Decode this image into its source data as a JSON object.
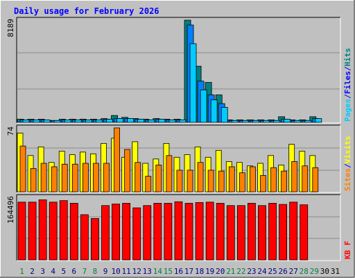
{
  "chart_data": [
    {
      "type": "bar",
      "panel": "hits-files-pages",
      "title": "Daily usage for February 2026",
      "ylabel_max": "8189",
      "side_legend": [
        {
          "text": "Pages",
          "color": "#00ccff"
        },
        {
          "text": "/",
          "color": "#0000ff"
        },
        {
          "text": "Files",
          "color": "#0000ff"
        },
        {
          "text": "/",
          "color": "#0000ff"
        },
        {
          "text": "Hits",
          "color": "#008080"
        }
      ],
      "ymax": 8189,
      "series": [
        {
          "name": "Hits",
          "color": "#008080",
          "values": [
            250,
            250,
            250,
            150,
            250,
            250,
            250,
            250,
            300,
            550,
            400,
            300,
            250,
            300,
            250,
            250,
            8189,
            4500,
            3200,
            2200,
            200,
            200,
            200,
            200,
            200,
            450,
            200,
            200,
            450
          ]
        },
        {
          "name": "Files",
          "color": "#0080ff",
          "values": [
            200,
            200,
            200,
            150,
            200,
            200,
            200,
            200,
            250,
            300,
            300,
            250,
            200,
            250,
            200,
            200,
            7800,
            3300,
            2200,
            1500,
            150,
            150,
            150,
            150,
            150,
            250,
            150,
            150,
            300
          ]
        },
        {
          "name": "Pages",
          "color": "#00ccff",
          "values": [
            200,
            200,
            200,
            150,
            200,
            200,
            200,
            200,
            250,
            300,
            300,
            250,
            200,
            250,
            200,
            200,
            6300,
            2600,
            1800,
            1200,
            150,
            150,
            150,
            150,
            150,
            250,
            150,
            150,
            300
          ]
        }
      ]
    },
    {
      "type": "bar",
      "panel": "visits-sites",
      "ylabel_max": "74",
      "side_legend": [
        {
          "text": "Sites",
          "color": "#ff8000"
        },
        {
          "text": "/",
          "color": "#0000ff"
        },
        {
          "text": "Visits",
          "color": "#ffff00"
        }
      ],
      "ymax": 74,
      "series": [
        {
          "name": "Visits",
          "color": "#ffff00",
          "values": [
            68,
            42,
            52,
            34,
            47,
            43,
            46,
            44,
            56,
            62,
            40,
            58,
            33,
            38,
            56,
            40,
            43,
            52,
            40,
            48,
            35,
            34,
            30,
            33,
            42,
            31,
            55,
            47,
            42
          ]
        },
        {
          "name": "Sites",
          "color": "#ff8000",
          "values": [
            53,
            27,
            33,
            29,
            32,
            32,
            33,
            33,
            33,
            74,
            49,
            34,
            18,
            31,
            42,
            25,
            25,
            34,
            25,
            24,
            29,
            22,
            29,
            19,
            28,
            24,
            35,
            30,
            28
          ]
        }
      ]
    },
    {
      "type": "bar",
      "panel": "kbytes",
      "ylabel_max": "164496",
      "side_legend": [
        {
          "text": "KB F",
          "color": "#ff0000"
        }
      ],
      "ymax": 164496,
      "series": [
        {
          "name": "KB F",
          "color": "#ff0000",
          "values": [
            152000,
            152000,
            158000,
            152000,
            156000,
            149000,
            119000,
            109000,
            143000,
            147000,
            149000,
            137000,
            143000,
            149000,
            149000,
            153000,
            149000,
            151000,
            152000,
            149000,
            143000,
            143000,
            149000,
            143000,
            149000,
            146000,
            152000,
            145000,
            1
          ]
        }
      ]
    }
  ],
  "x_days": [
    "1",
    "2",
    "3",
    "4",
    "5",
    "6",
    "7",
    "8",
    "9",
    "10",
    "11",
    "12",
    "13",
    "14",
    "15",
    "16",
    "17",
    "18",
    "19",
    "20",
    "21",
    "22",
    "23",
    "24",
    "25",
    "26",
    "27",
    "28",
    "29",
    "30",
    "31"
  ],
  "x_day_colors": [
    "#008040",
    "#000080",
    "#000080",
    "#000080",
    "#000080",
    "#000080",
    "#008040",
    "#008040",
    "#000080",
    "#000080",
    "#000080",
    "#000080",
    "#000080",
    "#008040",
    "#008040",
    "#000080",
    "#000080",
    "#000080",
    "#000080",
    "#000080",
    "#008040",
    "#008040",
    "#000080",
    "#000080",
    "#000080",
    "#000080",
    "#000080",
    "#008040",
    "#008040",
    "#000000",
    "#000000"
  ],
  "colors": {
    "frame_bg": "#c0c0c0",
    "title": "#0000ff",
    "grid": "#8a8a8a"
  }
}
